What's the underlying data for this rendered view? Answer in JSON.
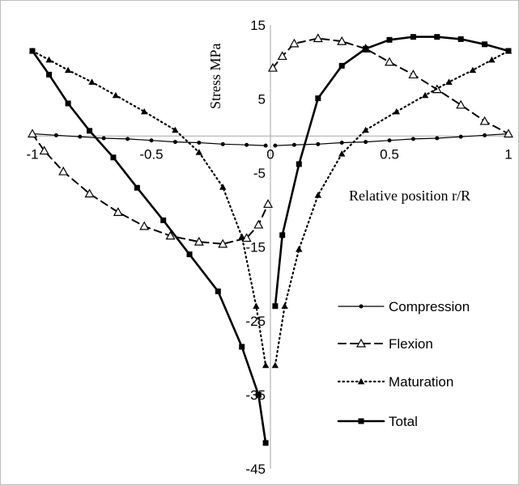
{
  "chart_data": {
    "type": "line",
    "title": "",
    "xlabel": "Relative position r/R",
    "ylabel": "Stress MPa",
    "xlim": [
      -1,
      1
    ],
    "ylim": [
      -45,
      15
    ],
    "x_ticks": [
      "-1",
      "-0.5",
      "0",
      "0.5",
      "1"
    ],
    "x_tick_values": [
      -1,
      -0.5,
      0,
      0.5,
      1
    ],
    "y_ticks": [
      "15",
      "5",
      "-5",
      "-15",
      "-25",
      "-35",
      "-45"
    ],
    "y_tick_values": [
      15,
      5,
      -5,
      -15,
      -25,
      -35,
      -45
    ],
    "gridlines": false,
    "legend_position": "bottom-right",
    "series": [
      {
        "name": "Compression",
        "line_style": "solid-thin",
        "marker": "circle",
        "segments": [
          [
            [
              -1,
              0.3
            ],
            [
              -0.9,
              0.1
            ],
            [
              -0.8,
              -0.1
            ],
            [
              -0.7,
              -0.3
            ],
            [
              -0.6,
              -0.4
            ],
            [
              -0.5,
              -0.6
            ],
            [
              -0.4,
              -0.8
            ],
            [
              -0.3,
              -0.9
            ],
            [
              -0.2,
              -1.1
            ],
            [
              -0.1,
              -1.2
            ],
            [
              -0.02,
              -1.3
            ]
          ],
          [
            [
              0.02,
              -1.3
            ],
            [
              0.1,
              -1.2
            ],
            [
              0.2,
              -1.1
            ],
            [
              0.3,
              -0.9
            ],
            [
              0.4,
              -0.8
            ],
            [
              0.5,
              -0.6
            ],
            [
              0.6,
              -0.4
            ],
            [
              0.7,
              -0.3
            ],
            [
              0.8,
              -0.1
            ],
            [
              0.9,
              0.1
            ],
            [
              1,
              0.3
            ]
          ]
        ]
      },
      {
        "name": "Flexion",
        "line_style": "dashed",
        "marker": "open-triangle",
        "segments": [
          [
            [
              -1,
              0.3
            ],
            [
              -0.95,
              -2.0
            ],
            [
              -0.87,
              -4.8
            ],
            [
              -0.76,
              -7.8
            ],
            [
              -0.64,
              -10.3
            ],
            [
              -0.53,
              -12.2
            ],
            [
              -0.42,
              -13.5
            ],
            [
              -0.3,
              -14.3
            ],
            [
              -0.2,
              -14.6
            ],
            [
              -0.1,
              -13.8
            ],
            [
              -0.05,
              -12.0
            ],
            [
              -0.01,
              -9.2
            ]
          ],
          [
            [
              0.01,
              9.2
            ],
            [
              0.05,
              10.8
            ],
            [
              0.1,
              12.5
            ],
            [
              0.2,
              13.2
            ],
            [
              0.3,
              12.8
            ],
            [
              0.4,
              11.8
            ],
            [
              0.5,
              10.0
            ],
            [
              0.6,
              8.3
            ],
            [
              0.7,
              6.3
            ],
            [
              0.8,
              4.2
            ],
            [
              0.9,
              2.0
            ],
            [
              1,
              0.3
            ]
          ]
        ]
      },
      {
        "name": "Maturation",
        "line_style": "dotted",
        "marker": "filled-triangle",
        "segments": [
          [
            [
              -1,
              11.5
            ],
            [
              -0.93,
              10.3
            ],
            [
              -0.85,
              8.9
            ],
            [
              -0.75,
              7.3
            ],
            [
              -0.65,
              5.5
            ],
            [
              -0.53,
              3.3
            ],
            [
              -0.4,
              0.8
            ],
            [
              -0.3,
              -2.2
            ],
            [
              -0.2,
              -6.9
            ],
            [
              -0.12,
              -13.6
            ],
            [
              -0.06,
              -23.0
            ],
            [
              -0.02,
              -31.0
            ]
          ],
          [
            [
              0.02,
              -31.0
            ],
            [
              0.06,
              -23.0
            ],
            [
              0.12,
              -15.3
            ],
            [
              0.2,
              -8.0
            ],
            [
              0.3,
              -2.4
            ],
            [
              0.4,
              0.8
            ],
            [
              0.53,
              3.3
            ],
            [
              0.65,
              5.5
            ],
            [
              0.75,
              7.3
            ],
            [
              0.85,
              8.9
            ],
            [
              0.93,
              10.3
            ],
            [
              1,
              11.5
            ]
          ]
        ]
      },
      {
        "name": "Total",
        "line_style": "solid-thick",
        "marker": "filled-square",
        "segments": [
          [
            [
              -1,
              11.5
            ],
            [
              -0.93,
              8.3
            ],
            [
              -0.85,
              4.4
            ],
            [
              -0.76,
              0.7
            ],
            [
              -0.66,
              -2.9
            ],
            [
              -0.56,
              -7.0
            ],
            [
              -0.45,
              -11.4
            ],
            [
              -0.34,
              -16.0
            ],
            [
              -0.22,
              -21.0
            ],
            [
              -0.12,
              -28.5
            ],
            [
              -0.05,
              -35.0
            ],
            [
              -0.02,
              -41.5
            ]
          ],
          [
            [
              0.02,
              -23.0
            ],
            [
              0.05,
              -13.4
            ],
            [
              0.12,
              -3.8
            ],
            [
              0.2,
              5.1
            ],
            [
              0.3,
              9.5
            ],
            [
              0.4,
              11.8
            ],
            [
              0.5,
              13.0
            ],
            [
              0.6,
              13.4
            ],
            [
              0.7,
              13.4
            ],
            [
              0.8,
              13.1
            ],
            [
              0.9,
              12.4
            ],
            [
              1,
              11.5
            ]
          ]
        ]
      }
    ]
  }
}
